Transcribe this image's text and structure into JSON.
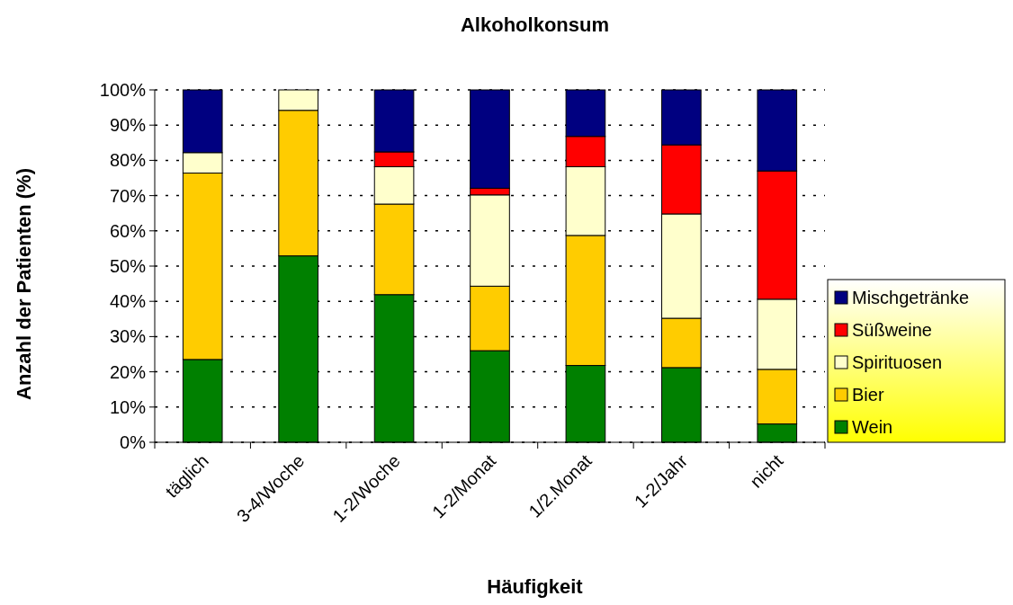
{
  "chart_data": {
    "type": "bar",
    "stacked": true,
    "title": "Alkoholkonsum",
    "xlabel": "Häufigkeit",
    "ylabel": "Anzahl der Patienten (%)",
    "categories": [
      "täglich",
      "3-4/Woche",
      "1-2/Woche",
      "1-2/Monat",
      "1/2.Monat",
      "1-2/Jahr",
      "nicht"
    ],
    "series": [
      {
        "name": "Wein",
        "color": "#008000",
        "values": [
          23.5,
          52.9,
          41.9,
          26.0,
          21.8,
          21.2,
          5.2
        ]
      },
      {
        "name": "Bier",
        "color": "#ffcc00",
        "values": [
          52.9,
          41.3,
          25.7,
          18.3,
          36.9,
          14.0,
          15.5
        ]
      },
      {
        "name": "Spirituosen",
        "color": "#ffffcc",
        "values": [
          5.8,
          5.8,
          10.6,
          25.9,
          19.5,
          29.6,
          19.9
        ]
      },
      {
        "name": "Süßweine",
        "color": "#ff0000",
        "values": [
          0,
          0,
          4.2,
          1.9,
          8.6,
          19.6,
          36.4
        ]
      },
      {
        "name": "Mischgetränke",
        "color": "#000080",
        "values": [
          17.8,
          0,
          17.6,
          27.9,
          13.2,
          15.6,
          23.0
        ]
      }
    ],
    "ylim": [
      0,
      100
    ],
    "yticks": [
      {
        "value": 0,
        "label": "0%"
      },
      {
        "value": 10,
        "label": "10%"
      },
      {
        "value": 20,
        "label": "20%"
      },
      {
        "value": 30,
        "label": "30%"
      },
      {
        "value": 40,
        "label": "40%"
      },
      {
        "value": 50,
        "label": "50%"
      },
      {
        "value": 60,
        "label": "60%"
      },
      {
        "value": 70,
        "label": "70%"
      },
      {
        "value": 80,
        "label": "80%"
      },
      {
        "value": 90,
        "label": "90%"
      },
      {
        "value": 100,
        "label": "100%"
      }
    ],
    "grid": "y",
    "legend": "right"
  }
}
